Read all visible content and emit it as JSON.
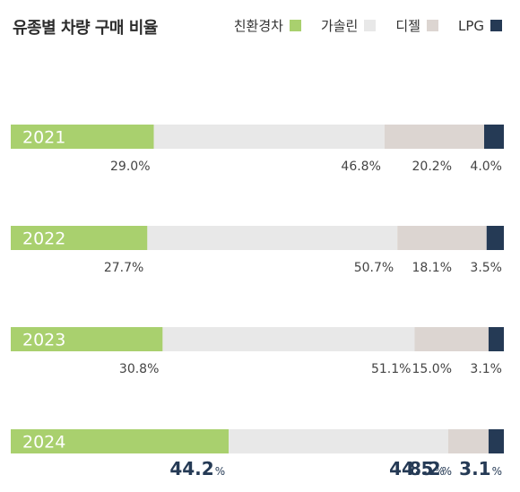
{
  "chart_data": {
    "type": "bar",
    "orientation": "horizontal",
    "stacked": true,
    "normalized": true,
    "title": "유종별 차량 구매 비율",
    "categories": [
      "2021",
      "2022",
      "2023",
      "2024"
    ],
    "series": [
      {
        "name": "친환경차",
        "color": "#a9d06e",
        "values": [
          29.0,
          27.7,
          30.8,
          44.2
        ],
        "labels": [
          "29.0%",
          "27.7%",
          "30.8%",
          "44.2%"
        ]
      },
      {
        "name": "가솔린",
        "color": "#e8e8e8",
        "values": [
          46.8,
          50.7,
          51.1,
          44.5
        ],
        "labels": [
          "46.8%",
          "50.7%",
          "51.1%",
          "44.5%"
        ]
      },
      {
        "name": "디젤",
        "color": "#dcd5d1",
        "values": [
          20.2,
          18.1,
          15.0,
          8.2
        ],
        "labels": [
          "20.2%",
          "18.1%",
          "15.0%",
          "8.2%"
        ]
      },
      {
        "name": "LPG",
        "color": "#253a55",
        "values": [
          4.0,
          3.5,
          3.1,
          3.1
        ],
        "labels": [
          "4.0%",
          "3.5%",
          "3.1%",
          "3.1%"
        ]
      }
    ],
    "highlight_category": "2024",
    "legend": "top-right",
    "grid": false
  }
}
